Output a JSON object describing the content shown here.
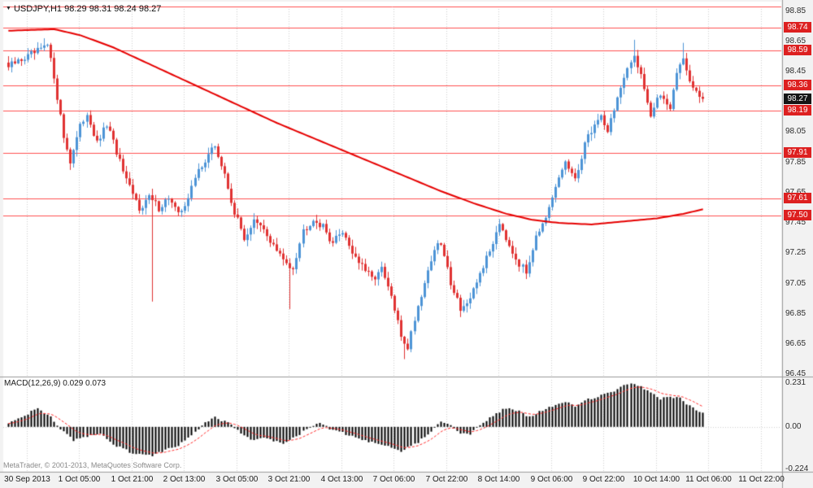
{
  "header": {
    "symbol": "USDJPY,H1",
    "ohlc": "98.29 98.31 98.24 98.27"
  },
  "icons": {
    "symbol_marker": "▼"
  },
  "macd_panel": {
    "label": "MACD(12,26,9) 0.029 0.073"
  },
  "footer": {
    "copyright": "MetaTrader, © 2001-2013, MetaQuotes Software Corp."
  },
  "axes": {
    "price_ticks": [
      {
        "label": "98.85",
        "value": 98.85
      },
      {
        "label": "98.65",
        "value": 98.65
      },
      {
        "label": "98.45",
        "value": 98.45
      },
      {
        "label": "98.05",
        "value": 98.05
      },
      {
        "label": "97.85",
        "value": 97.85
      },
      {
        "label": "97.65",
        "value": 97.65
      },
      {
        "label": "97.45",
        "value": 97.45
      },
      {
        "label": "97.25",
        "value": 97.25
      },
      {
        "label": "97.05",
        "value": 97.05
      },
      {
        "label": "96.85",
        "value": 96.85
      },
      {
        "label": "96.65",
        "value": 96.65
      },
      {
        "label": "96.45",
        "value": 96.45
      }
    ],
    "macd_ticks": [
      {
        "label": "0.231",
        "value": 0.231
      },
      {
        "label": "0.00",
        "value": 0.0
      },
      {
        "label": "-0.224",
        "value": -0.224
      }
    ],
    "time_labels": [
      "30 Sep 2013",
      "1 Oct 05:00",
      "1 Oct 21:00",
      "2 Oct 13:00",
      "3 Oct 05:00",
      "3 Oct 21:00",
      "4 Oct 13:00",
      "7 Oct 06:00",
      "7 Oct 22:00",
      "8 Oct 14:00",
      "9 Oct 06:00",
      "9 Oct 22:00",
      "10 Oct 14:00",
      "11 Oct 06:00",
      "11 Oct 22:00"
    ]
  },
  "chart_data": {
    "type": "candlestick",
    "symbol": "USDJPY",
    "timeframe": "H1",
    "title": "USDJPY,H1 98.29 98.31 98.24 98.27",
    "ohlc_display": {
      "open": "98.29",
      "high": "98.31",
      "low": "98.24",
      "close": "98.27"
    },
    "y_axis_range": [
      96.44,
      98.88
    ],
    "candle_count": 213,
    "candles_per_gridline": 16,
    "horizontal_levels": [
      {
        "price": 98.88,
        "label": ""
      },
      {
        "price": 98.74,
        "label": "98.74"
      },
      {
        "price": 98.59,
        "label": "98.59"
      },
      {
        "price": 98.36,
        "label": "98.36"
      },
      {
        "price": 98.19,
        "label": "98.19"
      },
      {
        "price": 97.91,
        "label": "97.91"
      },
      {
        "price": 97.61,
        "label": "97.61"
      },
      {
        "price": 97.5,
        "label": "97.50"
      }
    ],
    "current_price": {
      "value": 98.27,
      "label": "98.27"
    },
    "close_keyframes": [
      [
        0,
        98.48
      ],
      [
        4,
        98.53
      ],
      [
        8,
        98.57
      ],
      [
        12,
        98.62
      ],
      [
        14,
        98.42
      ],
      [
        17,
        98.02
      ],
      [
        19,
        97.86
      ],
      [
        22,
        98.08
      ],
      [
        24,
        98.18
      ],
      [
        27,
        97.97
      ],
      [
        30,
        98.1
      ],
      [
        33,
        97.92
      ],
      [
        36,
        97.72
      ],
      [
        40,
        97.55
      ],
      [
        43,
        97.62
      ],
      [
        46,
        97.55
      ],
      [
        49,
        97.62
      ],
      [
        52,
        97.5
      ],
      [
        55,
        97.62
      ],
      [
        58,
        97.8
      ],
      [
        61,
        97.9
      ],
      [
        63,
        97.96
      ],
      [
        66,
        97.76
      ],
      [
        69,
        97.52
      ],
      [
        72,
        97.35
      ],
      [
        75,
        97.46
      ],
      [
        78,
        97.4
      ],
      [
        81,
        97.3
      ],
      [
        84,
        97.2
      ],
      [
        87,
        97.16
      ],
      [
        90,
        97.4
      ],
      [
        93,
        97.48
      ],
      [
        96,
        97.42
      ],
      [
        99,
        97.32
      ],
      [
        102,
        97.4
      ],
      [
        105,
        97.26
      ],
      [
        108,
        97.16
      ],
      [
        111,
        97.08
      ],
      [
        114,
        97.14
      ],
      [
        117,
        96.96
      ],
      [
        120,
        96.7
      ],
      [
        122,
        96.63
      ],
      [
        124,
        96.82
      ],
      [
        127,
        97.06
      ],
      [
        130,
        97.28
      ],
      [
        132,
        97.31
      ],
      [
        135,
        97.06
      ],
      [
        138,
        96.89
      ],
      [
        141,
        96.93
      ],
      [
        144,
        97.12
      ],
      [
        147,
        97.26
      ],
      [
        150,
        97.46
      ],
      [
        153,
        97.31
      ],
      [
        156,
        97.18
      ],
      [
        158,
        97.12
      ],
      [
        161,
        97.38
      ],
      [
        164,
        97.46
      ],
      [
        167,
        97.68
      ],
      [
        170,
        97.86
      ],
      [
        173,
        97.72
      ],
      [
        176,
        97.98
      ],
      [
        179,
        98.1
      ],
      [
        181,
        98.16
      ],
      [
        183,
        98.06
      ],
      [
        186,
        98.28
      ],
      [
        189,
        98.45
      ],
      [
        191,
        98.56
      ],
      [
        193,
        98.44
      ],
      [
        196,
        98.16
      ],
      [
        199,
        98.3
      ],
      [
        202,
        98.22
      ],
      [
        204,
        98.44
      ],
      [
        206,
        98.55
      ],
      [
        208,
        98.37
      ],
      [
        210,
        98.31
      ],
      [
        212,
        98.27
      ]
    ],
    "wick_spikes": [
      {
        "i": 11,
        "high": 98.67
      },
      {
        "i": 19,
        "low": 97.8
      },
      {
        "i": 44,
        "low": 96.93
      },
      {
        "i": 86,
        "low": 96.88
      },
      {
        "i": 121,
        "low": 96.55
      },
      {
        "i": 191,
        "high": 98.66
      },
      {
        "i": 206,
        "high": 98.64
      }
    ],
    "ma_keyframes": [
      [
        0,
        98.72
      ],
      [
        14,
        98.73
      ],
      [
        22,
        98.69
      ],
      [
        32,
        98.61
      ],
      [
        42,
        98.51
      ],
      [
        52,
        98.41
      ],
      [
        62,
        98.31
      ],
      [
        72,
        98.21
      ],
      [
        82,
        98.11
      ],
      [
        92,
        98.02
      ],
      [
        102,
        97.93
      ],
      [
        112,
        97.84
      ],
      [
        122,
        97.75
      ],
      [
        132,
        97.66
      ],
      [
        142,
        97.58
      ],
      [
        152,
        97.51
      ],
      [
        160,
        97.47
      ],
      [
        168,
        97.45
      ],
      [
        178,
        97.44
      ],
      [
        188,
        97.46
      ],
      [
        198,
        97.48
      ],
      [
        206,
        97.51
      ],
      [
        212,
        97.54
      ]
    ],
    "indicator": {
      "name": "MACD",
      "params": [
        12,
        26,
        9
      ],
      "value_display": "0.029",
      "signal_display": "0.073",
      "range": [
        -0.224,
        0.231
      ],
      "macd_keyframes": [
        [
          0,
          0.02
        ],
        [
          5,
          0.06
        ],
        [
          9,
          0.1
        ],
        [
          13,
          0.05
        ],
        [
          16,
          -0.01
        ],
        [
          20,
          -0.07
        ],
        [
          24,
          -0.05
        ],
        [
          28,
          -0.04
        ],
        [
          33,
          -0.1
        ],
        [
          38,
          -0.14
        ],
        [
          44,
          -0.15
        ],
        [
          48,
          -0.12
        ],
        [
          52,
          -0.1
        ],
        [
          56,
          -0.04
        ],
        [
          60,
          0.02
        ],
        [
          63,
          0.05
        ],
        [
          67,
          0.02
        ],
        [
          70,
          -0.02
        ],
        [
          74,
          -0.07
        ],
        [
          79,
          -0.06
        ],
        [
          84,
          -0.09
        ],
        [
          88,
          -0.05
        ],
        [
          92,
          0.0
        ],
        [
          95,
          0.02
        ],
        [
          98,
          -0.01
        ],
        [
          102,
          -0.03
        ],
        [
          106,
          -0.06
        ],
        [
          110,
          -0.08
        ],
        [
          115,
          -0.1
        ],
        [
          120,
          -0.13
        ],
        [
          125,
          -0.08
        ],
        [
          129,
          -0.02
        ],
        [
          132,
          0.03
        ],
        [
          135,
          0.01
        ],
        [
          138,
          -0.03
        ],
        [
          141,
          -0.04
        ],
        [
          144,
          0.01
        ],
        [
          148,
          0.06
        ],
        [
          152,
          0.1
        ],
        [
          156,
          0.08
        ],
        [
          159,
          0.05
        ],
        [
          162,
          0.08
        ],
        [
          166,
          0.11
        ],
        [
          170,
          0.13
        ],
        [
          173,
          0.11
        ],
        [
          176,
          0.14
        ],
        [
          180,
          0.16
        ],
        [
          184,
          0.18
        ],
        [
          187,
          0.21
        ],
        [
          190,
          0.225
        ],
        [
          193,
          0.21
        ],
        [
          196,
          0.18
        ],
        [
          199,
          0.15
        ],
        [
          202,
          0.16
        ],
        [
          205,
          0.15
        ],
        [
          208,
          0.11
        ],
        [
          210,
          0.09
        ],
        [
          212,
          0.07
        ]
      ]
    },
    "colors": {
      "bull": "#4d94d6",
      "bear": "#e03232",
      "ma": "#e60000",
      "level": "#ff5050",
      "level_label_bg": "#dd2020",
      "current_label_bg": "#151515",
      "histogram": "#000000",
      "signal": "#ff2a2a",
      "grid": "#cfcfcf",
      "background": "#ffffff",
      "frame": "#f2f2f2",
      "separator": "#9a9a9a"
    }
  }
}
